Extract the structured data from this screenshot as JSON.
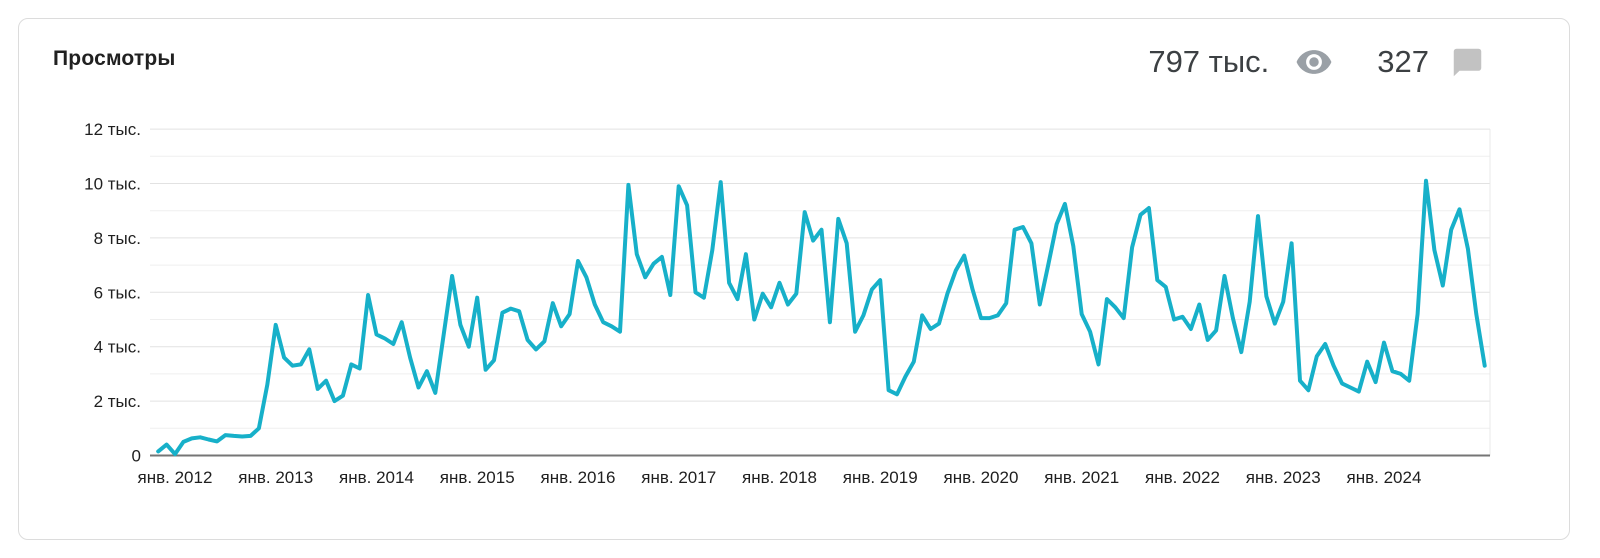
{
  "header": {
    "title": "Просмотры",
    "views_total": "797 тыс.",
    "views_icon": "eye-icon",
    "comments_total": "327",
    "comments_icon": "comment-bubble-icon",
    "icon_colors": {
      "eye": "#9aa0a6",
      "bubble": "#c2c2c2"
    }
  },
  "chart_data": {
    "type": "line",
    "title": "Просмотры",
    "xlabel": "",
    "ylabel": "",
    "unit": "views per month",
    "line_color": "#17b0c9",
    "grid": "horizontal, every 1000",
    "legend_position": "none",
    "ylim": [
      0,
      12400
    ],
    "y_ticks": [
      {
        "value": 0,
        "label": "0"
      },
      {
        "value": 2000,
        "label": "2 тыс."
      },
      {
        "value": 4000,
        "label": "4 тыс."
      },
      {
        "value": 6000,
        "label": "6 тыс."
      },
      {
        "value": 8000,
        "label": "8 тыс."
      },
      {
        "value": 10000,
        "label": "10 тыс."
      },
      {
        "value": 12000,
        "label": "12 тыс."
      }
    ],
    "gridline_values": [
      1000,
      2000,
      3000,
      4000,
      5000,
      6000,
      7000,
      8000,
      9000,
      10000,
      11000,
      12000
    ],
    "x_start_month": "нояб. 2011",
    "x_end_month": "янв. 2025",
    "x_ticks": [
      {
        "month_index": 2,
        "label": "янв. 2012"
      },
      {
        "month_index": 14,
        "label": "янв. 2013"
      },
      {
        "month_index": 26,
        "label": "янв. 2014"
      },
      {
        "month_index": 38,
        "label": "янв. 2015"
      },
      {
        "month_index": 50,
        "label": "янв. 2016"
      },
      {
        "month_index": 62,
        "label": "янв. 2017"
      },
      {
        "month_index": 74,
        "label": "янв. 2018"
      },
      {
        "month_index": 86,
        "label": "янв. 2019"
      },
      {
        "month_index": 98,
        "label": "янв. 2020"
      },
      {
        "month_index": 110,
        "label": "янв. 2021"
      },
      {
        "month_index": 122,
        "label": "янв. 2022"
      },
      {
        "month_index": 134,
        "label": "янв. 2023"
      },
      {
        "month_index": 146,
        "label": "янв. 2024"
      }
    ],
    "series": [
      {
        "name": "Просмотры в месяц",
        "values": [
          150,
          400,
          50,
          500,
          630,
          670,
          590,
          520,
          750,
          720,
          700,
          720,
          1000,
          2600,
          4800,
          3600,
          3300,
          3350,
          3900,
          2450,
          2750,
          2000,
          2200,
          3350,
          3200,
          5900,
          4450,
          4300,
          4100,
          4900,
          3600,
          2500,
          3100,
          2300,
          4450,
          6600,
          4800,
          4000,
          5800,
          3150,
          3500,
          5250,
          5400,
          5300,
          4250,
          3900,
          4200,
          5600,
          4750,
          5200,
          7150,
          6550,
          5550,
          4900,
          4750,
          4550,
          9950,
          7400,
          6550,
          7050,
          7300,
          5900,
          9900,
          9200,
          6000,
          5800,
          7550,
          10050,
          6350,
          5750,
          7400,
          5000,
          5950,
          5450,
          6350,
          5550,
          5950,
          8950,
          7900,
          8300,
          4900,
          8700,
          7800,
          4550,
          5150,
          6100,
          6450,
          2400,
          2250,
          2900,
          3450,
          5150,
          4650,
          4850,
          5950,
          6800,
          7350,
          6100,
          5050,
          5050,
          5150,
          5600,
          8300,
          8400,
          7800,
          5550,
          7000,
          8500,
          9250,
          7700,
          5200,
          4550,
          3350,
          5750,
          5450,
          5050,
          7650,
          8850,
          9100,
          6450,
          6200,
          5000,
          5100,
          4650,
          5550,
          4250,
          4600,
          6600,
          5050,
          3800,
          5650,
          8800,
          5850,
          4850,
          5650,
          7800,
          2750,
          2400,
          3650,
          4100,
          3300,
          2650,
          2500,
          2350,
          3450,
          2700,
          4150,
          3100,
          3000,
          2750,
          5200,
          10100,
          7550,
          6250,
          8300,
          9050,
          7600,
          5200,
          3300
        ]
      }
    ]
  }
}
